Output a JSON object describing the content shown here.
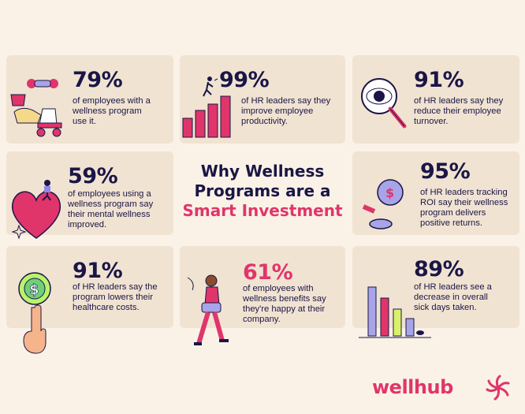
{
  "title": {
    "line1": "Why Wellness",
    "line2": "Programs are a",
    "accent": "Smart Investment"
  },
  "cards": [
    {
      "stat": "79%",
      "lines": [
        "of employees with a",
        "wellness program",
        "use it."
      ]
    },
    {
      "stat": "99%",
      "lines": [
        "of HR leaders say they",
        "improve employee",
        "productivity."
      ]
    },
    {
      "stat": "91%",
      "lines": [
        "of HR leaders say they",
        "reduce their employee",
        "turnover."
      ]
    },
    {
      "stat": "59%",
      "lines": [
        "of employees using a",
        "wellness program say",
        "their mental wellness",
        "improved."
      ]
    },
    {
      "stat": "95%",
      "lines": [
        "of HR leaders tracking",
        "ROI say their wellness",
        "program delivers",
        "positive returns."
      ]
    },
    {
      "stat": "91%",
      "lines": [
        "of HR leaders say the",
        "program lowers their",
        "healthcare costs."
      ]
    },
    {
      "stat": "61%",
      "lines": [
        "of employees with",
        "wellness benefits say",
        "they're happy at their",
        "company."
      ]
    },
    {
      "stat": "89%",
      "lines": [
        "of HR leaders see a",
        "decrease in overall",
        "sick days taken."
      ]
    }
  ],
  "brand": {
    "name": "wellhub",
    "color": "#E0356B",
    "text_color": "#1A1646"
  },
  "icons": [
    "roller-skates-icon",
    "bar-chart-climber-icon",
    "magnifying-eye-icon",
    "heart-person-icon",
    "coins-icon",
    "dollar-coin-hand-icon",
    "woman-walking-icon",
    "declining-bars-icon",
    "wellhub-flower-logo-icon"
  ]
}
